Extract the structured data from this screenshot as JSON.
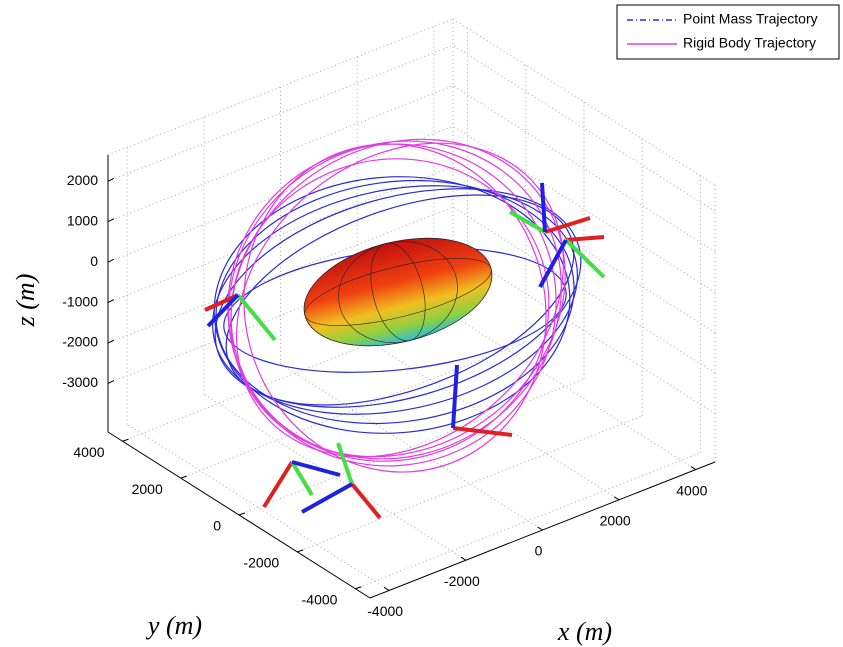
{
  "chart_data": {
    "type": "line3d",
    "xlabel": "x (m)",
    "ylabel": "y (m)",
    "zlabel": "z (m)",
    "xlim": [
      -4500,
      4500
    ],
    "ylim": [
      -4500,
      4500
    ],
    "zlim": [
      -4200,
      2650
    ],
    "xticks": [
      -4000,
      -2000,
      0,
      2000,
      4000
    ],
    "yticks": [
      -4000,
      -2000,
      0,
      2000,
      4000
    ],
    "zticks": [
      -3000,
      -2000,
      -1000,
      0,
      1000,
      2000
    ],
    "grid": true,
    "legend_position": "upper right",
    "series": [
      {
        "name": "Point Mass Trajectory",
        "color": "#2a2ad6",
        "line_style": "dash-dot"
      },
      {
        "name": "Rigid Body Trajectory",
        "color": "#e23be2",
        "line_style": "solid"
      }
    ]
  }
}
